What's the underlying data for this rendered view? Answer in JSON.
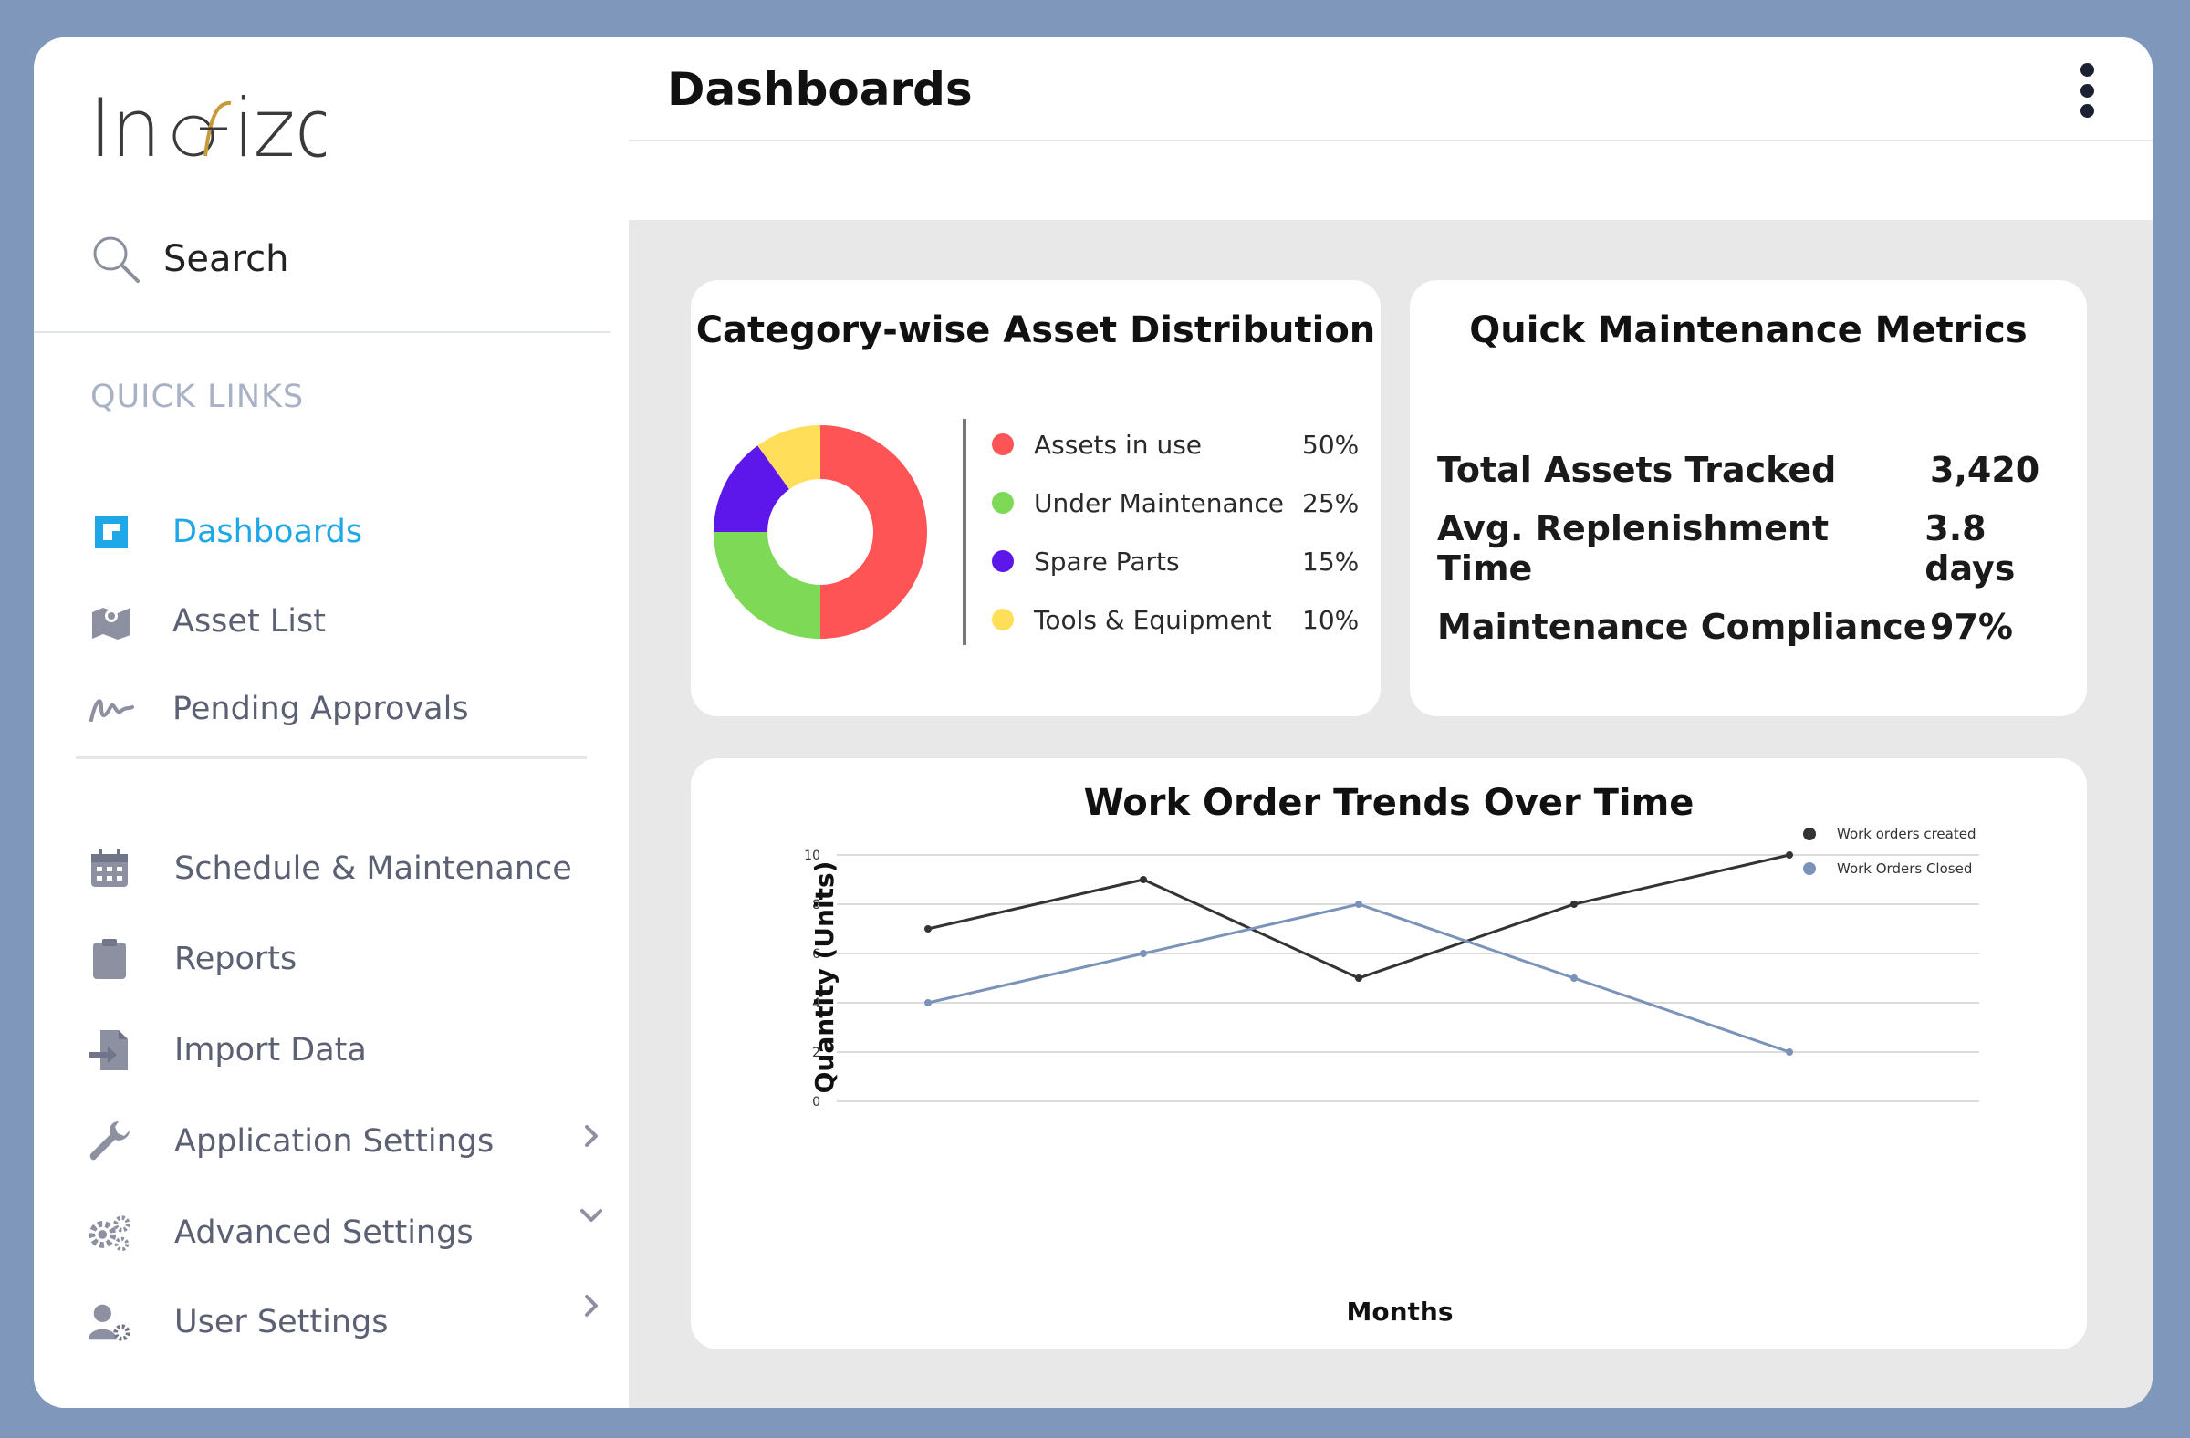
{
  "app": {
    "logo_text": "Inofizo",
    "search_label": "Search",
    "quick_links_title": "QUICK LINKS"
  },
  "sidebar": {
    "quick_links": [
      {
        "label": "Dashboards",
        "icon": "dashboard-icon",
        "active": true
      },
      {
        "label": "Asset List",
        "icon": "map-icon"
      },
      {
        "label": "Pending Approvals",
        "icon": "signature-icon"
      }
    ],
    "items": [
      {
        "label": "Schedule & Maintenance",
        "icon": "calendar-icon"
      },
      {
        "label": "Reports",
        "icon": "clipboard-icon"
      },
      {
        "label": "Import Data",
        "icon": "import-icon"
      },
      {
        "label": "Application Settings",
        "icon": "wrench-icon",
        "chevron": "right"
      },
      {
        "label": "Advanced Settings",
        "icon": "gears-icon",
        "chevron": "down"
      },
      {
        "label": "User Settings",
        "icon": "user-gear-icon",
        "chevron": "right"
      }
    ]
  },
  "header": {
    "title": "Dashboards",
    "menu_icon": "kebab-menu-icon"
  },
  "distribution": {
    "title": "Category-wise Asset Distribution",
    "items": [
      {
        "label": "Assets in use",
        "percent": "50%",
        "value": 50,
        "color": "#ff5455"
      },
      {
        "label": "Under Maintenance",
        "percent": "25%",
        "value": 25,
        "color": "#7ed957"
      },
      {
        "label": "Spare Parts",
        "percent": "15%",
        "value": 15,
        "color": "#5e17eb"
      },
      {
        "label": "Tools & Equipment",
        "percent": "10%",
        "value": 10,
        "color": "#ffde59"
      }
    ]
  },
  "metrics": {
    "title": "Quick Maintenance Metrics",
    "rows": [
      {
        "label": "Total Assets Tracked",
        "value": "3,420"
      },
      {
        "label": "Avg. Replenishment Time",
        "value": "3.8 days"
      },
      {
        "label": "Maintenance Compliance",
        "value": "97%"
      }
    ]
  },
  "chart_data": {
    "type": "line",
    "title": "Work Order Trends Over Time",
    "xlabel": "Months",
    "ylabel": "Quantity (Units)",
    "ylim": [
      0,
      10
    ],
    "yticks": [
      "0",
      "2",
      "4",
      "6",
      "8",
      "10"
    ],
    "x": [
      1,
      2,
      3,
      4,
      5
    ],
    "series": [
      {
        "name": "Work orders created",
        "values": [
          7,
          9,
          5,
          8,
          10
        ],
        "color": "#333333"
      },
      {
        "name": "Work Orders Closed",
        "values": [
          4,
          6,
          8,
          5,
          2
        ],
        "color": "#7b93bb"
      }
    ],
    "legend": "top-right",
    "grid": true
  }
}
